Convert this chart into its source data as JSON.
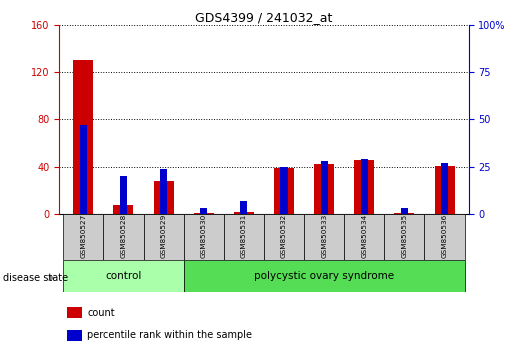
{
  "title": "GDS4399 / 241032_at",
  "samples": [
    "GSM850527",
    "GSM850528",
    "GSM850529",
    "GSM850530",
    "GSM850531",
    "GSM850532",
    "GSM850533",
    "GSM850534",
    "GSM850535",
    "GSM850536"
  ],
  "count_values": [
    130,
    8,
    28,
    1,
    2,
    39,
    42,
    46,
    1,
    41
  ],
  "percentile_values": [
    47,
    20,
    24,
    3,
    7,
    25,
    28,
    29,
    3,
    27
  ],
  "left_ylim": [
    0,
    160
  ],
  "right_ylim": [
    0,
    100
  ],
  "left_yticks": [
    0,
    40,
    80,
    120,
    160
  ],
  "right_yticks": [
    0,
    25,
    50,
    75,
    100
  ],
  "right_yticklabels": [
    "0",
    "25",
    "50",
    "75",
    "100%"
  ],
  "bar_color_red": "#cc0000",
  "bar_color_blue": "#0000cc",
  "control_label": "control",
  "pcos_label": "polycystic ovary syndrome",
  "disease_state_label": "disease state",
  "legend_count": "count",
  "legend_percentile": "percentile rank within the sample",
  "control_color": "#aaffaa",
  "pcos_color": "#55dd55",
  "tick_label_bg": "#cccccc",
  "red_bar_width": 0.5,
  "blue_bar_width": 0.18
}
